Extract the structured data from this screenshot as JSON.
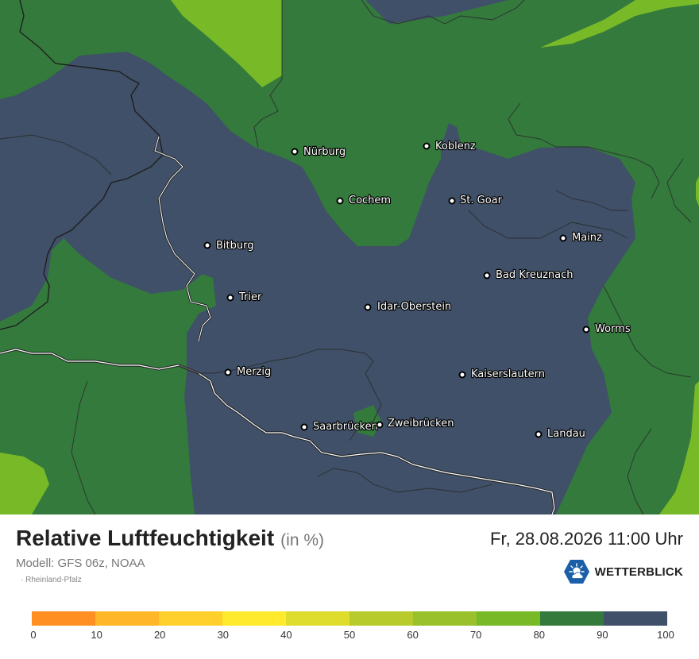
{
  "map": {
    "colors": {
      "lightgreen": "#78b928",
      "green": "#337a3c",
      "slate": "#3f5068",
      "border": "#1f1f1f"
    },
    "cities": [
      {
        "name": "Nürburg"
      },
      {
        "name": "Koblenz"
      },
      {
        "name": "Cochem"
      },
      {
        "name": "St. Goar"
      },
      {
        "name": "Mainz"
      },
      {
        "name": "Bitburg"
      },
      {
        "name": "Bad Kreuznach"
      },
      {
        "name": "Trier"
      },
      {
        "name": "Idar-Oberstein"
      },
      {
        "name": "Worms"
      },
      {
        "name": "Merzig"
      },
      {
        "name": "Kaiserslautern"
      },
      {
        "name": "Saarbrücken"
      },
      {
        "name": "Zweibrücken"
      },
      {
        "name": "Landau"
      }
    ]
  },
  "info": {
    "title": "Relative Luftfeuchtigkeit",
    "unit": "(in %)",
    "datetime": "Fr, 28.08.2026 11:00 Uhr",
    "model": "Modell: GFS 06z, NOAA",
    "region": "· Rheinland-Pfalz",
    "brand": "WETTERBLICK",
    "brand_icon": "sun-cloud-logo-icon"
  },
  "legend": {
    "colors": [
      "#ff8f22",
      "#ffb629",
      "#ffcf2c",
      "#ffea2e",
      "#dedc2d",
      "#b7cc2c",
      "#98c12c",
      "#78b928",
      "#337a3c",
      "#3f5068"
    ],
    "ticks": [
      "0",
      "10",
      "20",
      "30",
      "40",
      "50",
      "60",
      "70",
      "80",
      "90",
      "100"
    ]
  }
}
